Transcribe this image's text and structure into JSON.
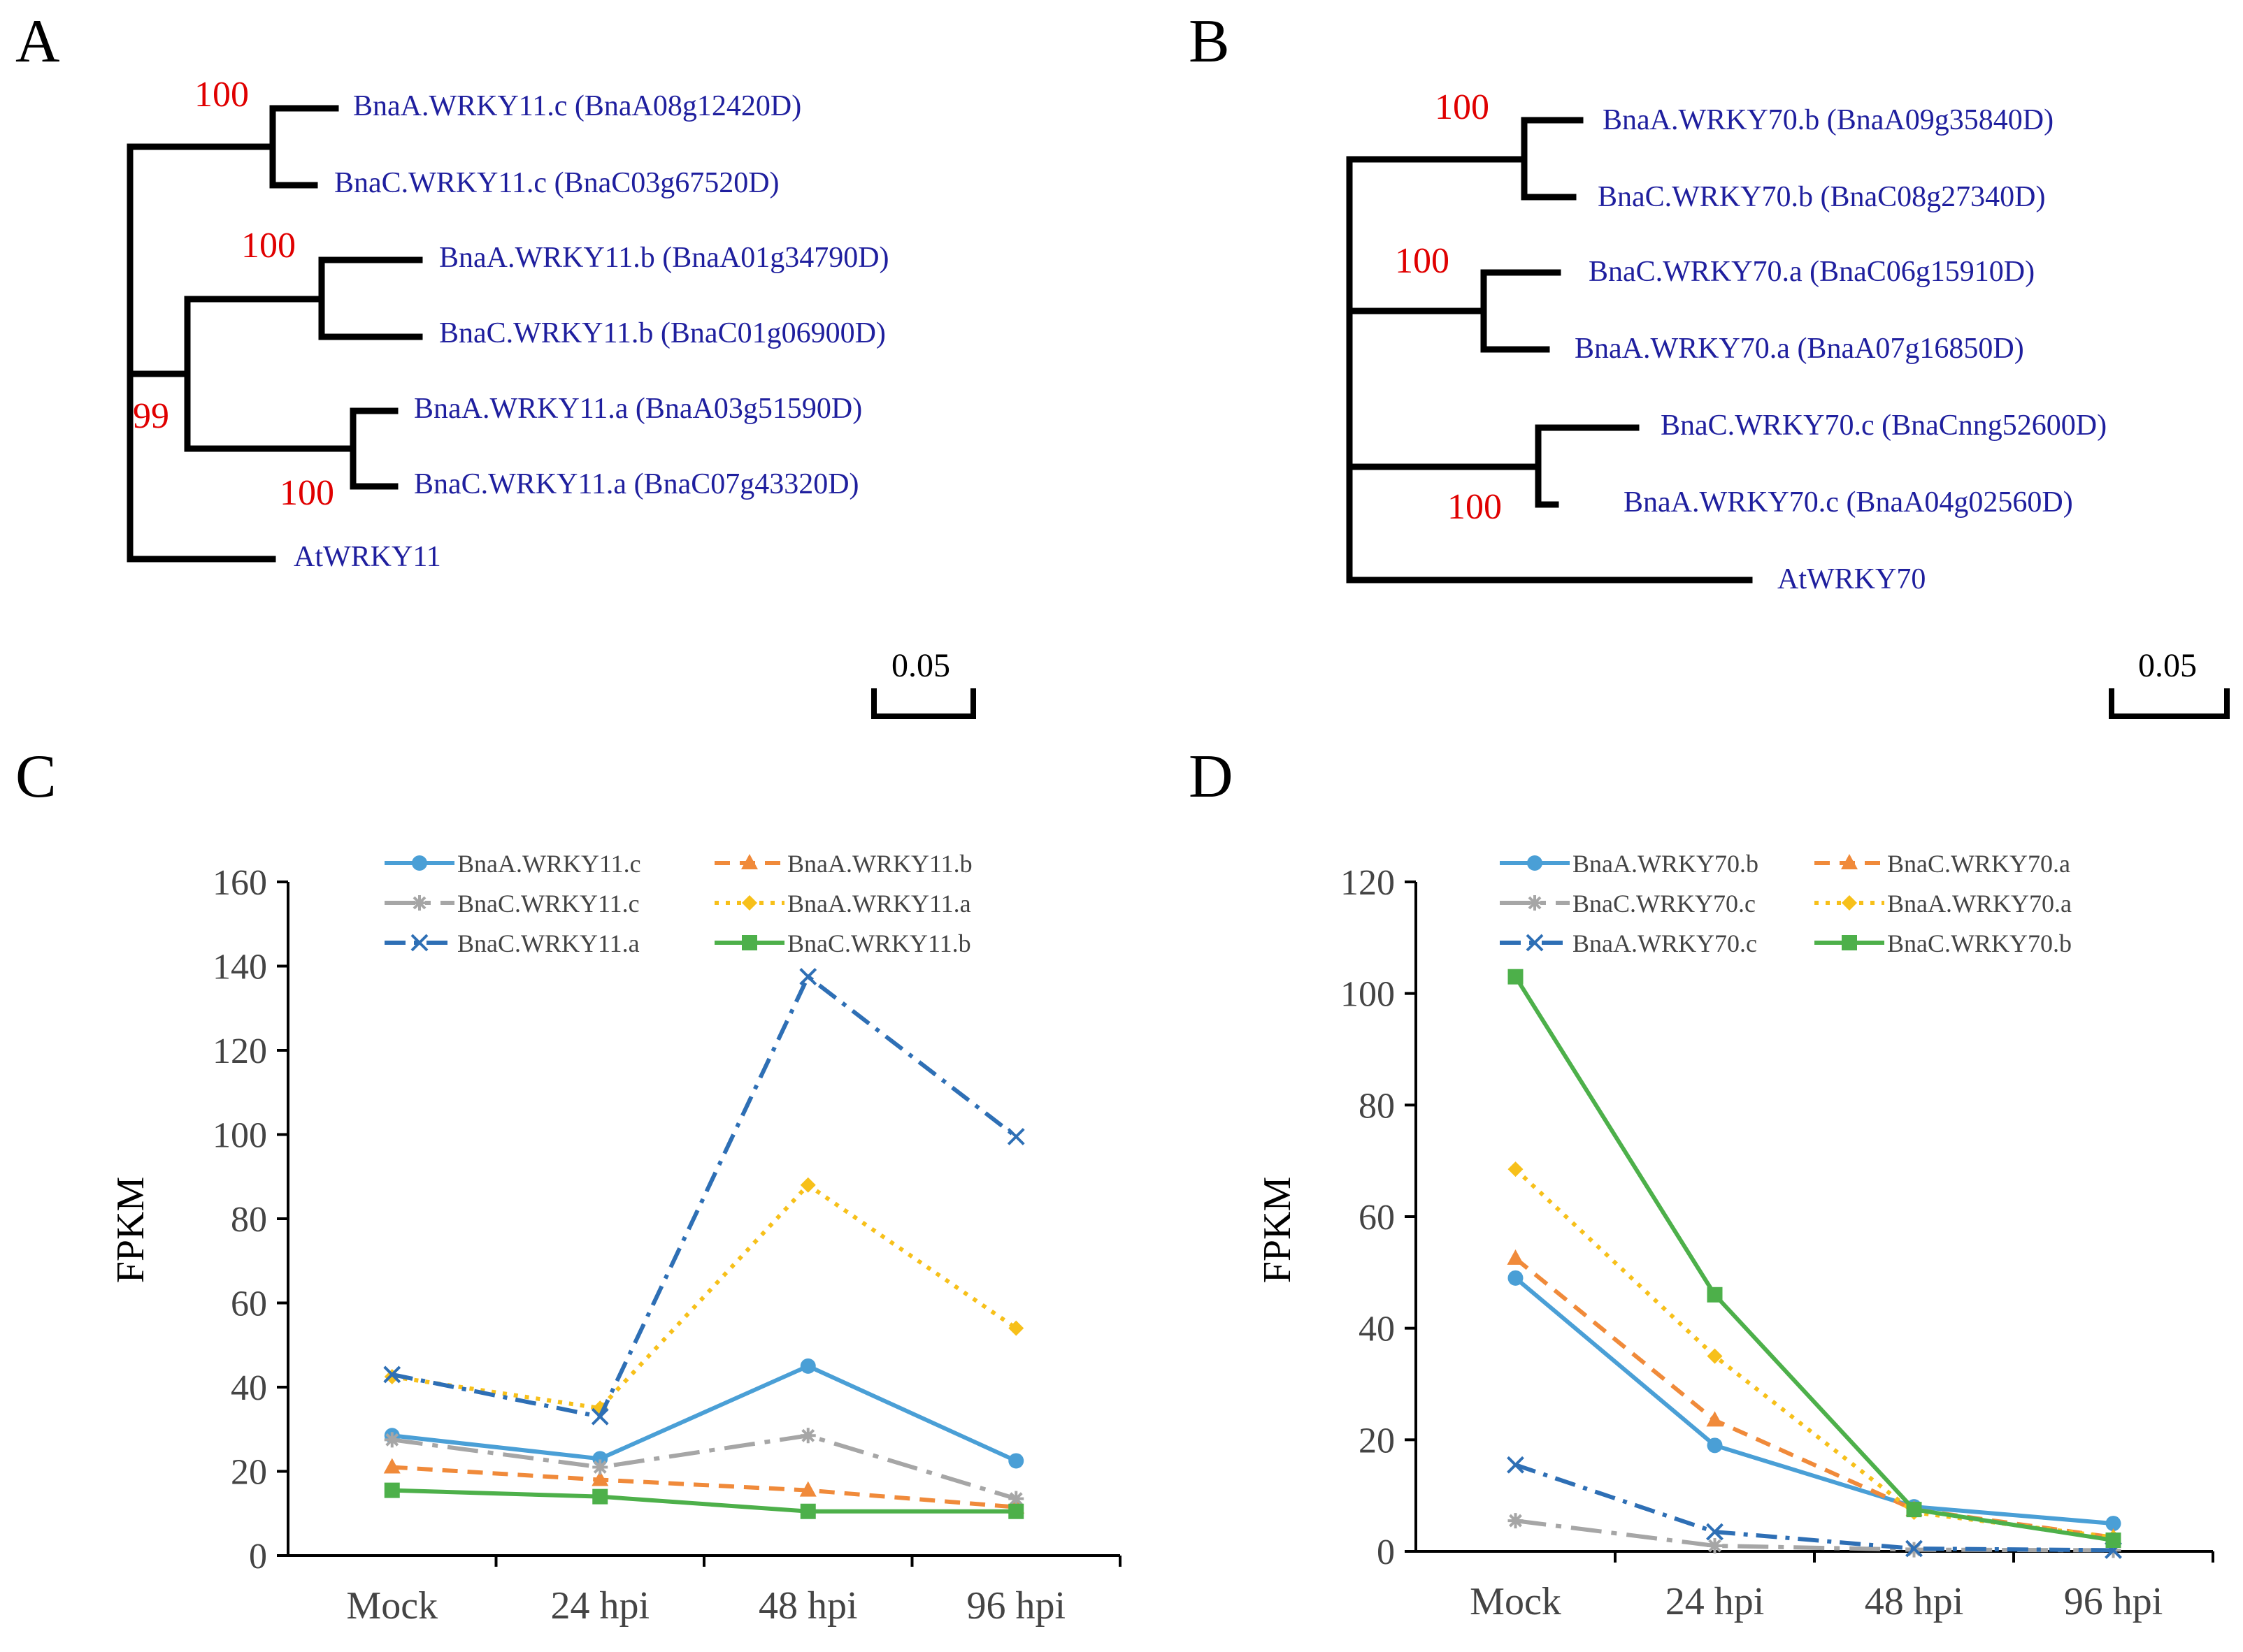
{
  "panels": {
    "A": "A",
    "B": "B",
    "C": "C",
    "D": "D"
  },
  "tree_a": {
    "leaves": [
      "BnaA.WRKY11.c (BnaA08g12420D)",
      "BnaC.WRKY11.c (BnaC03g67520D)",
      "BnaA.WRKY11.b (BnaA01g34790D)",
      "BnaC.WRKY11.b (BnaC01g06900D)",
      "BnaA.WRKY11.a (BnaA03g51590D)",
      "BnaC.WRKY11.a (BnaC07g43320D)",
      "AtWRKY11"
    ],
    "bootstraps": [
      "100",
      "100",
      "99",
      "100"
    ],
    "scale_label": "0.05"
  },
  "tree_b": {
    "leaves": [
      "BnaA.WRKY70.b (BnaA09g35840D)",
      "BnaC.WRKY70.b (BnaC08g27340D)",
      "BnaC.WRKY70.a (BnaC06g15910D)",
      "BnaA.WRKY70.a (BnaA07g16850D)",
      "BnaC.WRKY70.c (BnaCnng52600D)",
      "BnaA.WRKY70.c (BnaA04g02560D)",
      "AtWRKY70"
    ],
    "bootstraps": [
      "100",
      "100",
      "100"
    ],
    "scale_label": "0.05"
  },
  "colors": {
    "tree_label": "#1f1f9e",
    "bootstrap": "#e00000",
    "blue": "#4a9fd6",
    "orange": "#f08a3a",
    "gray": "#a6a6a6",
    "yellow": "#f7c01a",
    "darkblue": "#2e6fb5",
    "green": "#4db04a"
  },
  "chart_data": [
    {
      "type": "line",
      "panel": "C",
      "ylabel": "FPKM",
      "xlabel": "",
      "categories": [
        "Mock",
        "24 hpi",
        "48 hpi",
        "96 hpi"
      ],
      "ylim": [
        0,
        160
      ],
      "yticks": [
        0,
        20,
        40,
        60,
        80,
        100,
        120,
        140,
        160
      ],
      "legend_position": "top",
      "series": [
        {
          "name": "BnaA.WRKY11.c",
          "values": [
            28.5,
            23,
            45,
            22.5
          ],
          "color": "#4a9fd6",
          "dash": "solid",
          "marker": "circle"
        },
        {
          "name": "BnaA.WRKY11.b",
          "values": [
            21,
            18,
            15.5,
            11.5
          ],
          "color": "#f08a3a",
          "dash": "dash",
          "marker": "triangle"
        },
        {
          "name": "BnaC.WRKY11.c",
          "values": [
            27.5,
            21,
            28.5,
            13.5
          ],
          "color": "#a6a6a6",
          "dash": "longdashdot",
          "marker": "star"
        },
        {
          "name": "BnaA.WRKY11.a",
          "values": [
            42.5,
            35,
            88,
            54
          ],
          "color": "#f7c01a",
          "dash": "dot",
          "marker": "diamond"
        },
        {
          "name": "BnaC.WRKY11.a",
          "values": [
            43,
            33,
            137.5,
            99.5
          ],
          "color": "#2e6fb5",
          "dash": "dashdot",
          "marker": "x"
        },
        {
          "name": "BnaC.WRKY11.b",
          "values": [
            15.5,
            14,
            10.5,
            10.5
          ],
          "color": "#4db04a",
          "dash": "solid",
          "marker": "square"
        }
      ]
    },
    {
      "type": "line",
      "panel": "D",
      "ylabel": "FPKM",
      "xlabel": "",
      "categories": [
        "Mock",
        "24 hpi",
        "48 hpi",
        "96 hpi"
      ],
      "ylim": [
        0,
        120
      ],
      "yticks": [
        0,
        20,
        40,
        60,
        80,
        100,
        120
      ],
      "legend_position": "top",
      "series": [
        {
          "name": "BnaA.WRKY70.b",
          "values": [
            49,
            19,
            8,
            5
          ],
          "color": "#4a9fd6",
          "dash": "solid",
          "marker": "circle"
        },
        {
          "name": "BnaC.WRKY70.a",
          "values": [
            52.5,
            23.5,
            7.5,
            2.5
          ],
          "color": "#f08a3a",
          "dash": "dash",
          "marker": "triangle"
        },
        {
          "name": "BnaC.WRKY70.c",
          "values": [
            5.5,
            1,
            0.3,
            0.2
          ],
          "color": "#a6a6a6",
          "dash": "longdashdot",
          "marker": "star"
        },
        {
          "name": "BnaA.WRKY70.a",
          "values": [
            68.5,
            35,
            7,
            2.5
          ],
          "color": "#f7c01a",
          "dash": "dot",
          "marker": "diamond"
        },
        {
          "name": "BnaA.WRKY70.c",
          "values": [
            15.5,
            3.5,
            0.5,
            0.2
          ],
          "color": "#2e6fb5",
          "dash": "dashdot",
          "marker": "x"
        },
        {
          "name": "BnaC.WRKY70.b",
          "values": [
            103,
            46,
            7.5,
            2
          ],
          "color": "#4db04a",
          "dash": "solid",
          "marker": "square"
        }
      ]
    }
  ]
}
